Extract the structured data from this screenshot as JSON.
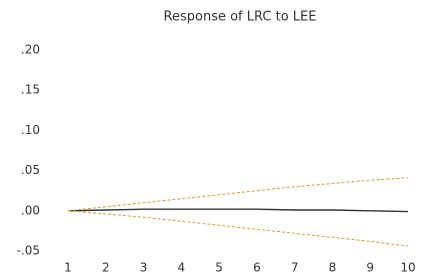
{
  "chart_data": {
    "type": "line",
    "title": "Response of LRC to LEE",
    "x": [
      1,
      2,
      3,
      4,
      5,
      6,
      7,
      8,
      9,
      10
    ],
    "xlim": [
      1,
      10
    ],
    "xticks": [
      1,
      2,
      3,
      4,
      5,
      6,
      7,
      8,
      9,
      10
    ],
    "ylim": [
      -0.05,
      0.2
    ],
    "yticks": [
      {
        "value": 0.2,
        "label": ".20"
      },
      {
        "value": 0.15,
        "label": ".15"
      },
      {
        "value": 0.1,
        "label": ".10"
      },
      {
        "value": 0.05,
        "label": ".05"
      },
      {
        "value": 0,
        "label": ".00"
      },
      {
        "value": -0.05,
        "label": "-.05"
      }
    ],
    "grid": false,
    "series": [
      {
        "color": "#333333",
        "dashed": false,
        "values": [
          0,
          0.001,
          0.002,
          0.002,
          0.002,
          0.002,
          0.001,
          0.001,
          0.0,
          -0.001
        ]
      },
      {
        "color": "#d49a3c",
        "dashed": true,
        "values": [
          0,
          0.005,
          0.01,
          0.015,
          0.02,
          0.025,
          0.03,
          0.034,
          0.038,
          0.041
        ]
      },
      {
        "color": "#d49a3c",
        "dashed": true,
        "values": [
          0,
          -0.004,
          -0.008,
          -0.013,
          -0.018,
          -0.023,
          -0.028,
          -0.033,
          -0.038,
          -0.044
        ]
      }
    ]
  }
}
